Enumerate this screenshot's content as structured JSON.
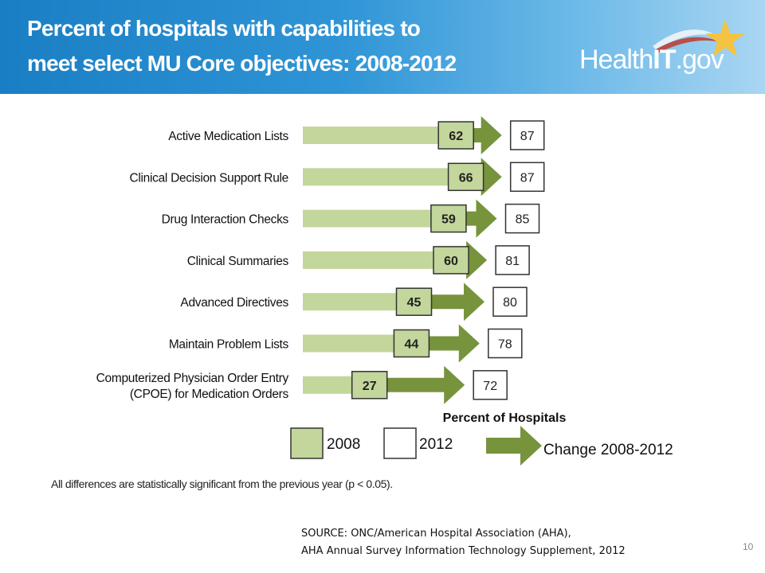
{
  "header": {
    "title_line1": "Percent of hospitals with capabilities to",
    "title_line2": "meet select MU Core objectives: 2008-2012",
    "logo_health": "Health",
    "logo_it": "IT",
    "logo_gov": ".gov"
  },
  "chart_data": {
    "type": "bar",
    "orientation": "horizontal",
    "categories": [
      "Active Medication Lists",
      "Clinical Decision Support Rule",
      "Drug Interaction Checks",
      "Clinical Summaries",
      "Advanced Directives",
      "Maintain Problem Lists",
      "Computerized Physician Order Entry (CPOE) for Medication Orders"
    ],
    "category_lines": [
      [
        "Active Medication Lists"
      ],
      [
        "Clinical Decision Support Rule"
      ],
      [
        "Drug Interaction Checks"
      ],
      [
        "Clinical Summaries"
      ],
      [
        "Advanced Directives"
      ],
      [
        "Maintain Problem Lists"
      ],
      [
        "Computerized Physician Order Entry",
        "(CPOE) for Medication Orders"
      ]
    ],
    "series": [
      {
        "name": "2008",
        "values": [
          62,
          66,
          59,
          60,
          45,
          44,
          27
        ]
      },
      {
        "name": "2012",
        "values": [
          87,
          87,
          85,
          81,
          80,
          78,
          72
        ]
      }
    ],
    "xlabel": "Percent of Hospitals",
    "xlim": [
      0,
      100
    ],
    "legend": {
      "placement": "bottom",
      "items": [
        "2008",
        "2012",
        "Change 2008-2012"
      ]
    },
    "colors": {
      "bar_2008": "#c3d69b",
      "arrow_change": "#77933c",
      "label_border": "#333333"
    }
  },
  "footnote": "All differences are statistically significant from the previous year (p < 0.05).",
  "source_line1": "SOURCE: ONC/American Hospital Association (AHA),",
  "source_line2": "AHA Annual Survey Information Technology Supplement, 2012",
  "page_number": "10"
}
